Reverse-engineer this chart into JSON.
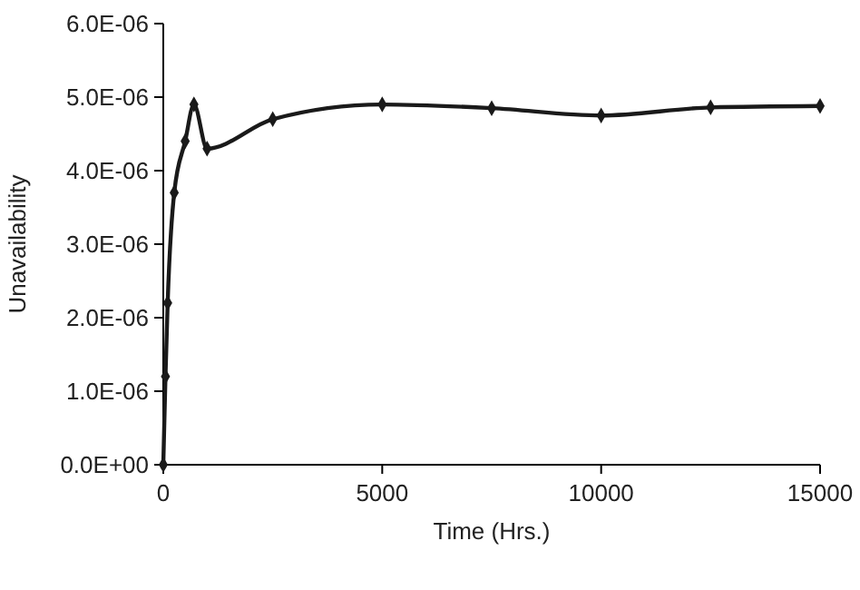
{
  "chart_data": {
    "type": "line",
    "xlabel": "Time (Hrs.)",
    "ylabel": "Unavailability",
    "x": [
      0,
      50,
      100,
      250,
      500,
      700,
      1000,
      2500,
      5000,
      7500,
      10000,
      12500,
      15000
    ],
    "series": [
      {
        "color": "#1a1a1a",
        "values": [
          0,
          1.2e-06,
          2.2e-06,
          3.7e-06,
          4.4e-06,
          4.9e-06,
          4.3e-06,
          4.7e-06,
          4.9e-06,
          4.85e-06,
          4.75e-06,
          4.86e-06,
          4.88e-06
        ]
      }
    ],
    "xlim": [
      0,
      15000
    ],
    "xticks": [
      0,
      5000,
      10000,
      15000
    ],
    "ylim": [
      0,
      6e-06
    ],
    "yticks": [
      {
        "value": 0,
        "label": "0.0E+00"
      },
      {
        "value": 1e-06,
        "label": "1.0E-06"
      },
      {
        "value": 2e-06,
        "label": "2.0E-06"
      },
      {
        "value": 3e-06,
        "label": "3.0E-06"
      },
      {
        "value": 4e-06,
        "label": "4.0E-06"
      },
      {
        "value": 5e-06,
        "label": "5.0E-06"
      },
      {
        "value": 6e-06,
        "label": "6.0E-06"
      }
    ],
    "grid": false,
    "marker": "diamond",
    "line_style": "solid"
  }
}
